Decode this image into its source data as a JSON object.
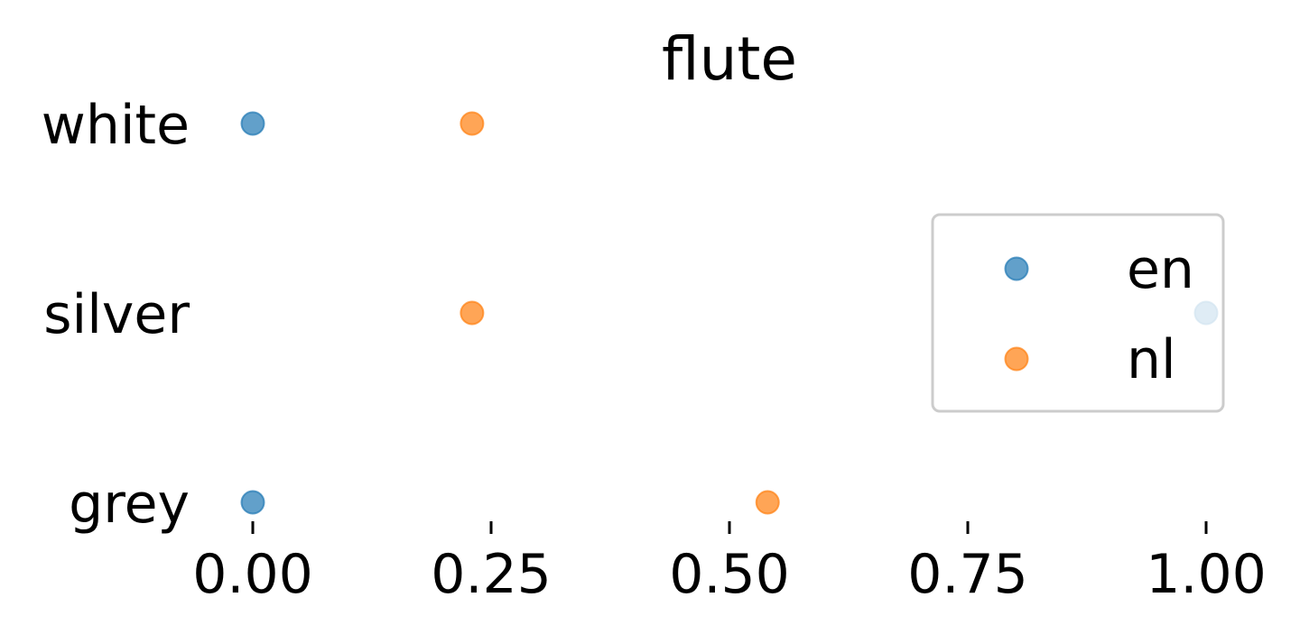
{
  "chart_data": {
    "type": "scatter",
    "title": "flute",
    "xlabel": "",
    "ylabel": "",
    "categories": [
      "white",
      "silver",
      "grey"
    ],
    "xlim": [
      0.0,
      1.0
    ],
    "xticks": [
      0.0,
      0.25,
      0.5,
      0.75,
      1.0
    ],
    "xtick_labels": [
      "0.00",
      "0.25",
      "0.50",
      "0.75",
      "1.00"
    ],
    "grid": false,
    "legend": {
      "position": "right",
      "entries": [
        {
          "name": "en",
          "color": "#1f77b4"
        },
        {
          "name": "nl",
          "color": "#ff7f0e"
        }
      ]
    },
    "series": [
      {
        "name": "en",
        "color": "#1f77b4",
        "points": [
          {
            "category": "white",
            "x": 0.0
          },
          {
            "category": "silver",
            "x": 1.0
          },
          {
            "category": "grey",
            "x": 0.0
          }
        ]
      },
      {
        "name": "nl",
        "color": "#ff7f0e",
        "points": [
          {
            "category": "white",
            "x": 0.23
          },
          {
            "category": "silver",
            "x": 0.23
          },
          {
            "category": "grey",
            "x": 0.54
          }
        ]
      }
    ]
  }
}
